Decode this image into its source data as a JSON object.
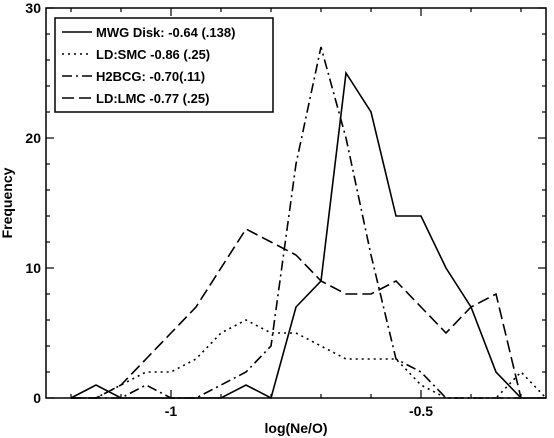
{
  "chart_data": {
    "type": "line",
    "xlabel": "log(Ne/O)",
    "ylabel": "Frequency",
    "xlim": [
      -1.25,
      -0.25
    ],
    "ylim": [
      0,
      30
    ],
    "x_ticks": [
      -1,
      -0.5
    ],
    "x_tick_labels": [
      "-1",
      "-0.5"
    ],
    "y_ticks": [
      0,
      10,
      20,
      30
    ],
    "y_tick_labels": [
      "0",
      "10",
      "20",
      "30"
    ],
    "grid": false,
    "legend_position": "top-left",
    "series": [
      {
        "name": "MWG Disk: -0.64 (.138)",
        "style": "solid",
        "x": [
          -1.2,
          -1.15,
          -1.1,
          -1.05,
          -1.0,
          -0.95,
          -0.9,
          -0.85,
          -0.8,
          -0.75,
          -0.7,
          -0.65,
          -0.6,
          -0.55,
          -0.5,
          -0.45,
          -0.4,
          -0.35,
          -0.3,
          -0.25
        ],
        "y": [
          0,
          1,
          0,
          0,
          0,
          0,
          0,
          1,
          0,
          7,
          9,
          25,
          22,
          14,
          14,
          10,
          7,
          2,
          0,
          0
        ]
      },
      {
        "name": "LD:SMC -0.86 (.25)",
        "style": "dotted",
        "x": [
          -1.2,
          -1.15,
          -1.1,
          -1.05,
          -1.0,
          -0.95,
          -0.9,
          -0.85,
          -0.8,
          -0.75,
          -0.7,
          -0.65,
          -0.6,
          -0.55,
          -0.5,
          -0.45,
          -0.4,
          -0.35,
          -0.3,
          -0.25
        ],
        "y": [
          0,
          0,
          1,
          2,
          2,
          3,
          5,
          6,
          5,
          5,
          4,
          3,
          3,
          3,
          1,
          0,
          0,
          0,
          2,
          0
        ]
      },
      {
        "name": "H2BCG: -0.70(.11)",
        "style": "dashdot",
        "x": [
          -1.2,
          -1.15,
          -1.1,
          -1.05,
          -1.0,
          -0.95,
          -0.9,
          -0.85,
          -0.8,
          -0.75,
          -0.7,
          -0.65,
          -0.6,
          -0.55,
          -0.5,
          -0.45,
          -0.4,
          -0.35,
          -0.3
        ],
        "y": [
          0,
          0,
          0,
          1,
          0,
          0,
          1,
          2,
          4,
          18,
          27,
          20,
          11,
          3,
          2,
          0,
          0,
          0,
          0
        ]
      },
      {
        "name": "LD:LMC -0.77 (.25)",
        "style": "dashed",
        "x": [
          -1.2,
          -1.15,
          -1.1,
          -1.05,
          -1.0,
          -0.95,
          -0.9,
          -0.85,
          -0.8,
          -0.75,
          -0.7,
          -0.65,
          -0.6,
          -0.55,
          -0.5,
          -0.45,
          -0.4,
          -0.35,
          -0.3
        ],
        "y": [
          0,
          0,
          1,
          3,
          5,
          7,
          10,
          13,
          12,
          11,
          9,
          8,
          8,
          9,
          7,
          5,
          7,
          8,
          0
        ]
      }
    ]
  }
}
